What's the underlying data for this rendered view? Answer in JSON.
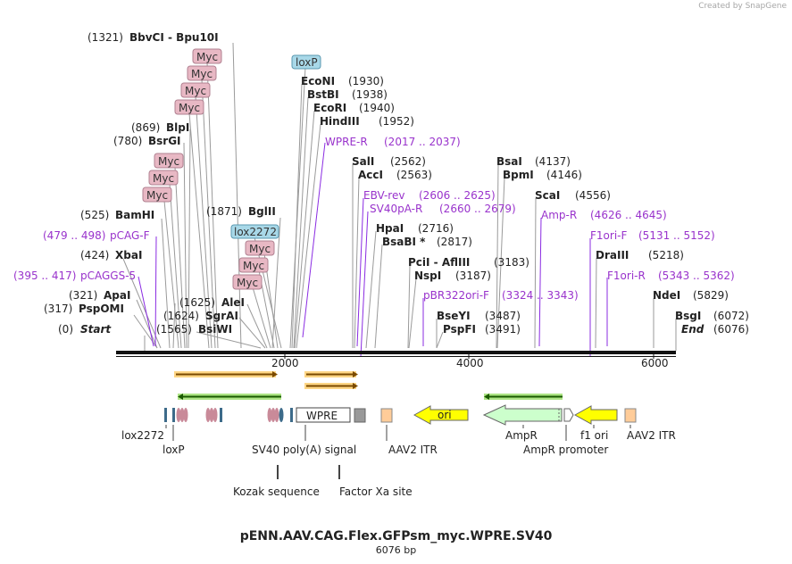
{
  "credit": "Created by SnapGene",
  "title": "pENN.AAV.CAG.Flex.GFPsm_myc.WPRE.SV40",
  "length": "6076 bp",
  "axis_ticks": [
    "2000",
    "4000",
    "6000"
  ],
  "top_sites": [
    {
      "name": "BbvCI  -  Bpu10I",
      "pos": "(1321)"
    },
    {
      "name": "BlpI",
      "pos": "(869)"
    },
    {
      "name": "BsrGI",
      "pos": "(780)"
    },
    {
      "name": "BamHI",
      "pos": "(525)"
    },
    {
      "name": "XbaI",
      "pos": "(424)"
    },
    {
      "name": "ApaI",
      "pos": "(321)"
    },
    {
      "name": "PspOMI",
      "pos": "(317)"
    },
    {
      "name": "Start",
      "pos": "(0)"
    },
    {
      "name": "BglII",
      "pos": "(1871)"
    },
    {
      "name": "AleI",
      "pos": "(1625)"
    },
    {
      "name": "SgrAI",
      "pos": "(1624)"
    },
    {
      "name": "BsiWI",
      "pos": "(1565)"
    },
    {
      "name": "EcoNI",
      "pos": "(1930)"
    },
    {
      "name": "BstBI",
      "pos": "(1938)"
    },
    {
      "name": "EcoRI",
      "pos": "(1940)"
    },
    {
      "name": "HindIII",
      "pos": "(1952)"
    },
    {
      "name": "SalI",
      "pos": "(2562)"
    },
    {
      "name": "AccI",
      "pos": "(2563)"
    },
    {
      "name": "HpaI",
      "pos": "(2716)"
    },
    {
      "name": "BsaBI *",
      "pos": "(2817)"
    },
    {
      "name": "PciI  -  AflIII",
      "pos": "(3183)"
    },
    {
      "name": "NspI",
      "pos": "(3187)"
    },
    {
      "name": "BseYI",
      "pos": "(3487)"
    },
    {
      "name": "PspFI",
      "pos": "(3491)"
    },
    {
      "name": "BsaI",
      "pos": "(4137)"
    },
    {
      "name": "BpmI",
      "pos": "(4146)"
    },
    {
      "name": "ScaI",
      "pos": "(4556)"
    },
    {
      "name": "DraIII",
      "pos": "(5218)"
    },
    {
      "name": "NdeI",
      "pos": "(5829)"
    },
    {
      "name": "BsgI",
      "pos": "(6072)"
    },
    {
      "name": "End",
      "pos": "(6076)"
    }
  ],
  "primers": [
    {
      "name": "WPRE-R",
      "range": "(2017 .. 2037)"
    },
    {
      "name": "pCAG-F",
      "range": "(479 .. 498)"
    },
    {
      "name": "pCAGGS-5",
      "range": "(395 .. 417)"
    },
    {
      "name": "EBV-rev",
      "range": "(2606 .. 2625)"
    },
    {
      "name": "SV40pA-R",
      "range": "(2660 .. 2679)"
    },
    {
      "name": "pBR322ori-F",
      "range": "(3324 .. 3343)"
    },
    {
      "name": "Amp-R",
      "range": "(4626 .. 4645)"
    },
    {
      "name": "F1ori-F",
      "range": "(5131 .. 5152)"
    },
    {
      "name": "F1ori-R",
      "range": "(5343 .. 5362)"
    }
  ],
  "tags": [
    "Myc",
    "Myc",
    "Myc",
    "Myc",
    "Myc",
    "Myc",
    "Myc",
    "Myc",
    "Myc",
    "Myc",
    "loxP",
    "lox2272"
  ],
  "features": {
    "wpre": "WPRE",
    "ori": "ori",
    "lox2272": "lox2272",
    "loxp": "loxP",
    "sv40": "SV40 poly(A) signal",
    "aav_itr_1": "AAV2 ITR",
    "ampr": "AmpR",
    "ampr_promoter": "AmpR promoter",
    "f1ori": "f1 ori",
    "aav_itr_2": "AAV2 ITR",
    "kozak": "Kozak sequence",
    "factor_xa": "Factor Xa site"
  },
  "colors": {
    "myc_tag": "#e8b8c4",
    "lox_tag": "#a8d8e8",
    "primer": "#9933cc",
    "ori_arrow": "#ffff00",
    "ampr_arrow": "#ccffcc",
    "itr": "#ffcc99",
    "orf_orange": "#ffcc66",
    "orf_green": "#99dd66"
  }
}
